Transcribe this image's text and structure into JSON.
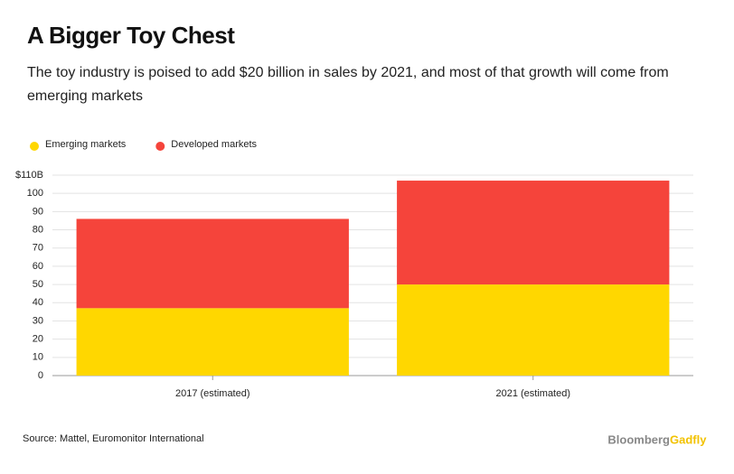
{
  "chart_data": {
    "type": "stacked_bar",
    "title": "A Bigger Toy Chest",
    "subtitle": "The toy industry is poised to add $20 billion in sales by 2021, and most of that growth will come from emerging markets",
    "categories": [
      "2017 (estimated)",
      "2021 (estimated)"
    ],
    "series": [
      {
        "name": "Emerging markets",
        "color": "#ffd700",
        "values": [
          37,
          50
        ]
      },
      {
        "name": "Developed markets",
        "color": "#f5443b",
        "values": [
          49,
          57
        ]
      }
    ],
    "ylim": [
      0,
      110
    ],
    "yticks": [
      0,
      10,
      20,
      30,
      40,
      50,
      60,
      70,
      80,
      90,
      100,
      {
        "value": 110,
        "label": "$110B"
      }
    ],
    "grid": true,
    "legend": "top-left",
    "source": "Source: Mattel, Euromonitor International",
    "logo": {
      "first": "Bloomberg",
      "second": "Gadfly"
    }
  }
}
